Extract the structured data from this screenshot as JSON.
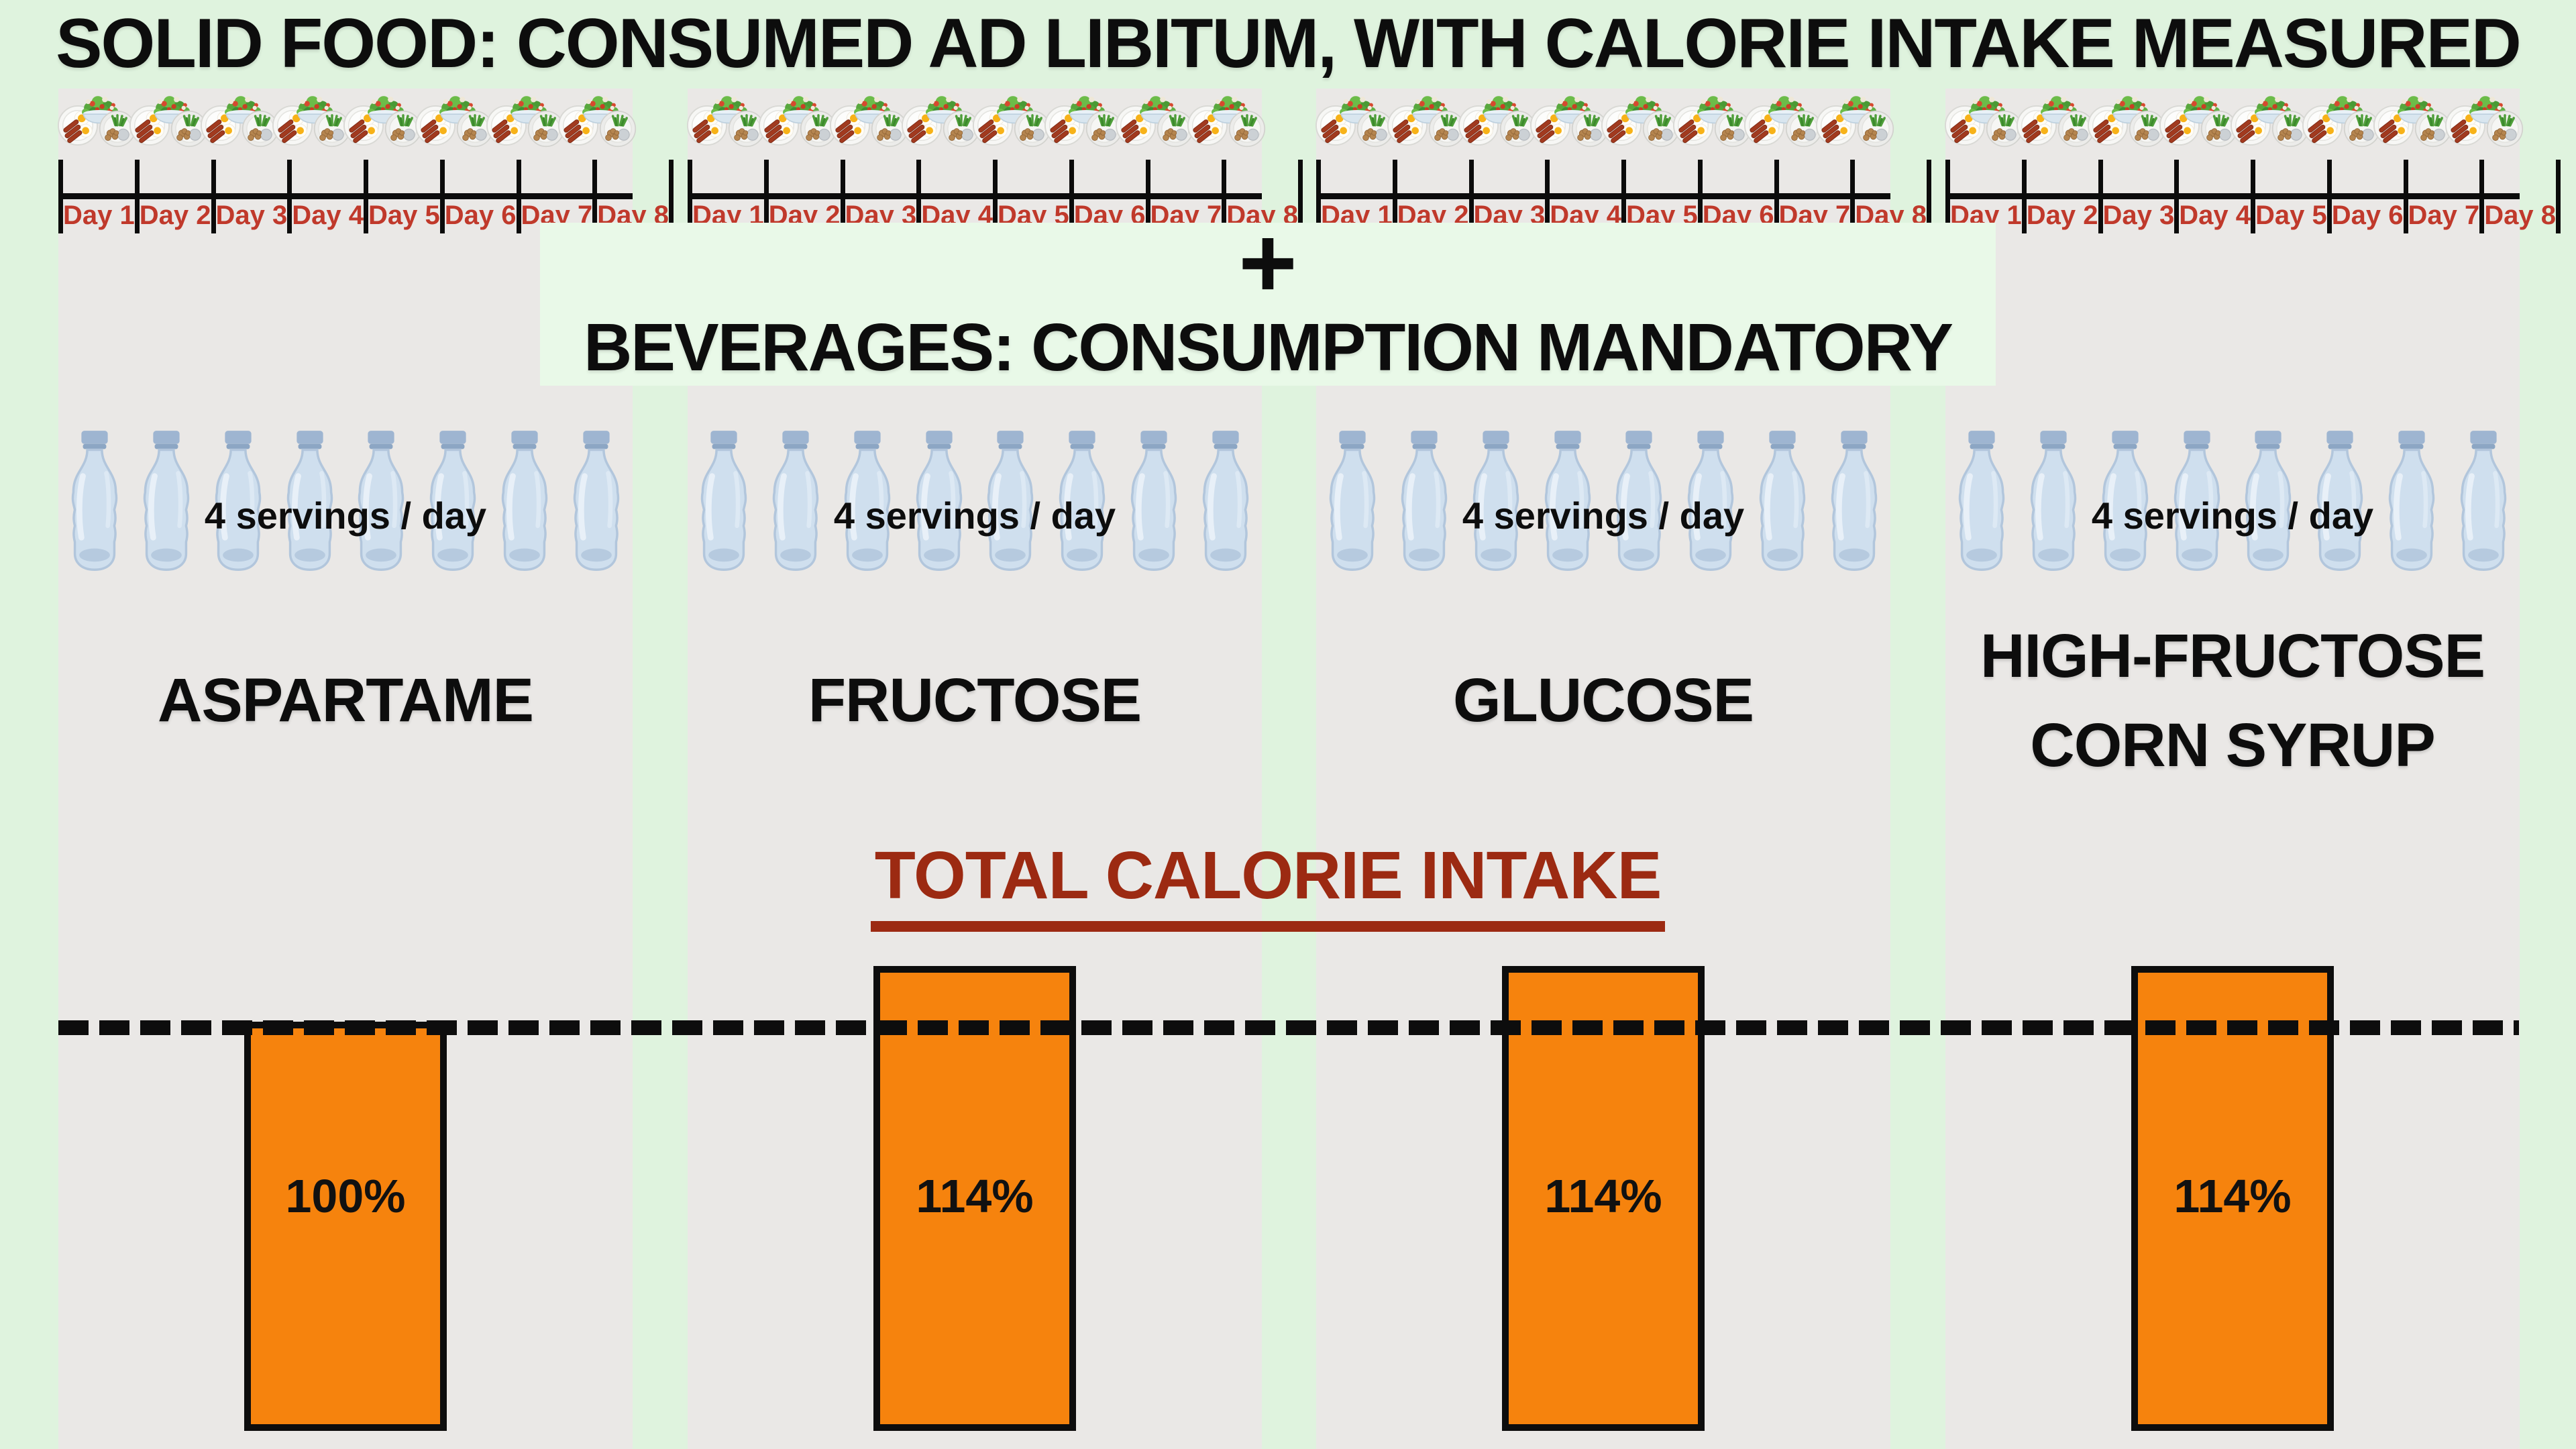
{
  "header": {
    "title": "SOLID FOOD: CONSUMED AD LIBITUM, WITH CALORIE INTAKE MEASURED"
  },
  "plus_sign": "+",
  "beverages": {
    "title": "BEVERAGES: CONSUMPTION MANDATORY",
    "servings_label": "4 servings / day",
    "bottles_shown_per_group": 8
  },
  "days": [
    "Day 1",
    "Day 2",
    "Day 3",
    "Day 4",
    "Day 5",
    "Day 6",
    "Day 7",
    "Day 8"
  ],
  "groups": [
    {
      "name": "ASPARTAME",
      "calorie_intake_pct": 100,
      "bar_label": "100%"
    },
    {
      "name": "FRUCTOSE",
      "calorie_intake_pct": 114,
      "bar_label": "114%"
    },
    {
      "name": "GLUCOSE",
      "calorie_intake_pct": 114,
      "bar_label": "114%"
    },
    {
      "name": "HIGH-FRUCTOSE CORN SYRUP",
      "calorie_intake_pct": 114,
      "bar_label": "114%"
    }
  ],
  "chart_data": {
    "type": "bar",
    "title": "TOTAL CALORIE INTAKE",
    "categories": [
      "ASPARTAME",
      "FRUCTOSE",
      "GLUCOSE",
      "HIGH-FRUCTOSE CORN SYRUP"
    ],
    "values": [
      100,
      114,
      114,
      114
    ],
    "unit": "%",
    "data_labels": [
      "100%",
      "114%",
      "114%",
      "114%"
    ],
    "reference_line": {
      "value": 100,
      "style": "dashed",
      "color": "#0d0d0d"
    },
    "bar_color": "#f6830d",
    "bar_border_color": "#0d0d0d",
    "legend": "none",
    "grid": "off"
  },
  "icons": {
    "food_plate": "breakfast-plate-icon",
    "salad": "salad-bowl-icon",
    "veggies": "veggie-plate-icon",
    "bottle": "water-bottle-icon"
  },
  "colors": {
    "background_green": "#dff3de",
    "band_green": "#e9f9e8",
    "panel_gray": "#eae8e6",
    "bar_orange": "#f6830d",
    "day_label_red": "#c0392b",
    "total_title_red": "#9c2a12",
    "line_black": "#0d0d0d"
  }
}
